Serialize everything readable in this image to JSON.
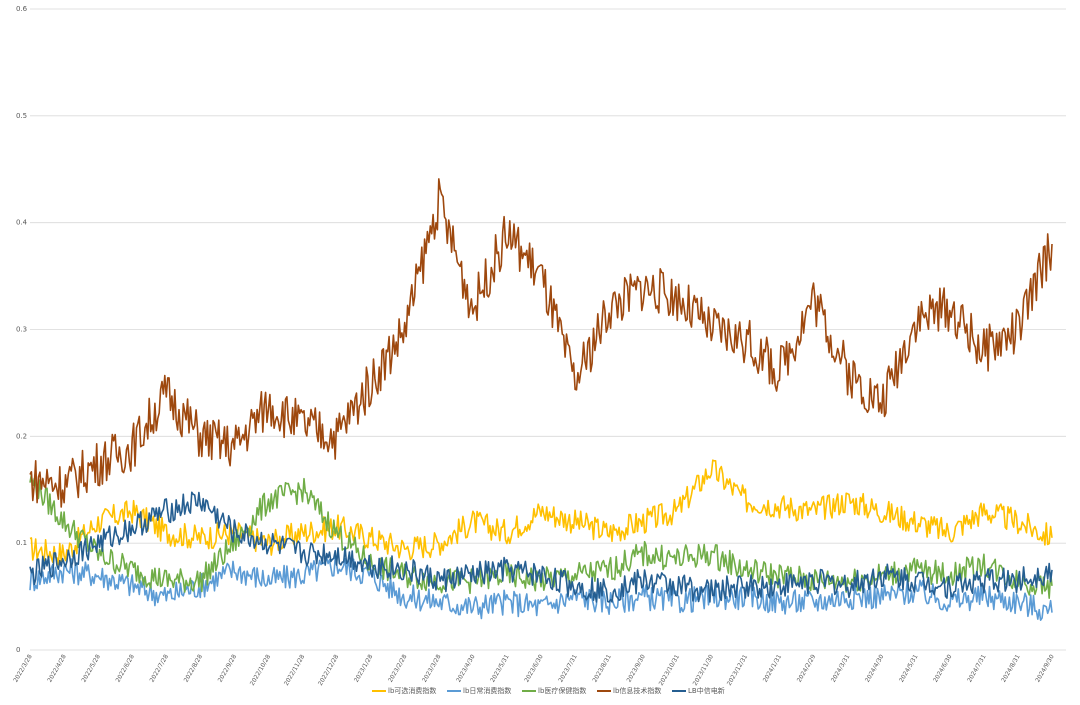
{
  "chart_data": {
    "type": "line",
    "title": "",
    "xlabel": "",
    "ylabel": "",
    "ylim": [
      0,
      0.6
    ],
    "y_ticks": [
      "0",
      "0.1",
      "0.2",
      "0.3",
      "0.4",
      "0.5",
      "0.6"
    ],
    "grid": true,
    "legend_position": "bottom",
    "x": [
      "2022/3/28",
      "2022/4/28",
      "2022/5/28",
      "2022/6/28",
      "2022/7/28",
      "2022/8/28",
      "2022/9/28",
      "2022/10/28",
      "2022/11/28",
      "2022/12/28",
      "2023/1/28",
      "2023/2/28",
      "2023/3/28",
      "2023/4/30",
      "2023/5/31",
      "2023/6/30",
      "2023/7/31",
      "2023/8/31",
      "2023/9/30",
      "2023/10/31",
      "2023/11/30",
      "2023/12/31",
      "2024/1/31",
      "2024/2/29",
      "2024/3/31",
      "2024/4/30",
      "2024/5/31",
      "2024/6/30",
      "2024/7/31",
      "2024/8/31",
      "2024/9/30"
    ],
    "series": [
      {
        "name": "lb可选消费指数",
        "color": "#FFC000",
        "values": [
          0.095,
          0.09,
          0.12,
          0.13,
          0.11,
          0.105,
          0.11,
          0.1,
          0.11,
          0.115,
          0.105,
          0.095,
          0.1,
          0.12,
          0.11,
          0.13,
          0.12,
          0.11,
          0.12,
          0.13,
          0.17,
          0.14,
          0.135,
          0.13,
          0.14,
          0.13,
          0.12,
          0.11,
          0.13,
          0.12,
          0.105
        ]
      },
      {
        "name": "lb日常消费指数",
        "color": "#5B9BD5",
        "values": [
          0.065,
          0.075,
          0.07,
          0.06,
          0.05,
          0.06,
          0.075,
          0.065,
          0.07,
          0.08,
          0.07,
          0.05,
          0.045,
          0.04,
          0.045,
          0.04,
          0.05,
          0.045,
          0.05,
          0.045,
          0.05,
          0.05,
          0.045,
          0.045,
          0.05,
          0.05,
          0.055,
          0.045,
          0.05,
          0.045,
          0.035
        ]
      },
      {
        "name": "lb医疗保健指数",
        "color": "#70AD47",
        "values": [
          0.16,
          0.12,
          0.09,
          0.075,
          0.065,
          0.065,
          0.1,
          0.14,
          0.15,
          0.11,
          0.08,
          0.07,
          0.065,
          0.065,
          0.07,
          0.065,
          0.07,
          0.075,
          0.09,
          0.085,
          0.09,
          0.075,
          0.07,
          0.065,
          0.065,
          0.07,
          0.075,
          0.07,
          0.08,
          0.065,
          0.06
        ]
      },
      {
        "name": "lb信息技术指数",
        "color": "#9E480E",
        "values": [
          0.16,
          0.155,
          0.175,
          0.19,
          0.24,
          0.2,
          0.19,
          0.23,
          0.21,
          0.2,
          0.25,
          0.3,
          0.42,
          0.32,
          0.39,
          0.35,
          0.25,
          0.32,
          0.34,
          0.33,
          0.3,
          0.29,
          0.26,
          0.33,
          0.26,
          0.23,
          0.31,
          0.32,
          0.28,
          0.3,
          0.38
        ]
      },
      {
        "name": "LB中信电新",
        "color": "#255E91",
        "values": [
          0.07,
          0.085,
          0.1,
          0.115,
          0.13,
          0.14,
          0.11,
          0.1,
          0.09,
          0.09,
          0.08,
          0.075,
          0.065,
          0.07,
          0.075,
          0.07,
          0.06,
          0.055,
          0.065,
          0.06,
          0.055,
          0.06,
          0.06,
          0.065,
          0.06,
          0.07,
          0.065,
          0.06,
          0.065,
          0.065,
          0.075
        ]
      }
    ]
  }
}
